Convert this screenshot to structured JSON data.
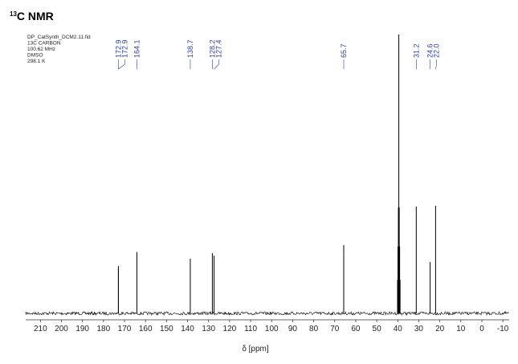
{
  "chart_data": {
    "type": "nmr",
    "title_sup": "13",
    "title": "C NMR",
    "info": [
      "DP_CatSynth_DCM2.11.fid",
      "13C CARBON",
      "100.62 MHz",
      "DMSO",
      "298.1 K"
    ],
    "x_label": "δ [ppm]",
    "xlim": [
      217,
      -13
    ],
    "xticks": [
      210,
      200,
      190,
      180,
      170,
      160,
      150,
      140,
      130,
      120,
      110,
      100,
      90,
      80,
      70,
      60,
      50,
      40,
      30,
      20,
      10,
      0,
      -10
    ],
    "ylim": [
      0,
      100
    ],
    "color": "#000000",
    "label_color": "#2a3fa0",
    "x": [
      172.9,
      172.9,
      164.1,
      138.7,
      128.2,
      127.4,
      65.7,
      40.1,
      39.9,
      39.7,
      39.5,
      39.3,
      39.1,
      38.9,
      31.2,
      24.6,
      22.0
    ],
    "values": [
      16,
      17,
      22,
      19.6,
      21.6,
      20.7,
      24.5,
      12,
      24,
      38,
      100,
      38,
      24,
      12,
      38.3,
      18.4,
      38.6
    ],
    "x_labels": [
      "172.9",
      "172.9",
      "164.1",
      "138.7",
      "128.2",
      "127.4",
      "65.7",
      null,
      null,
      null,
      null,
      null,
      null,
      null,
      "31.2",
      "24.6",
      "22.0"
    ]
  }
}
